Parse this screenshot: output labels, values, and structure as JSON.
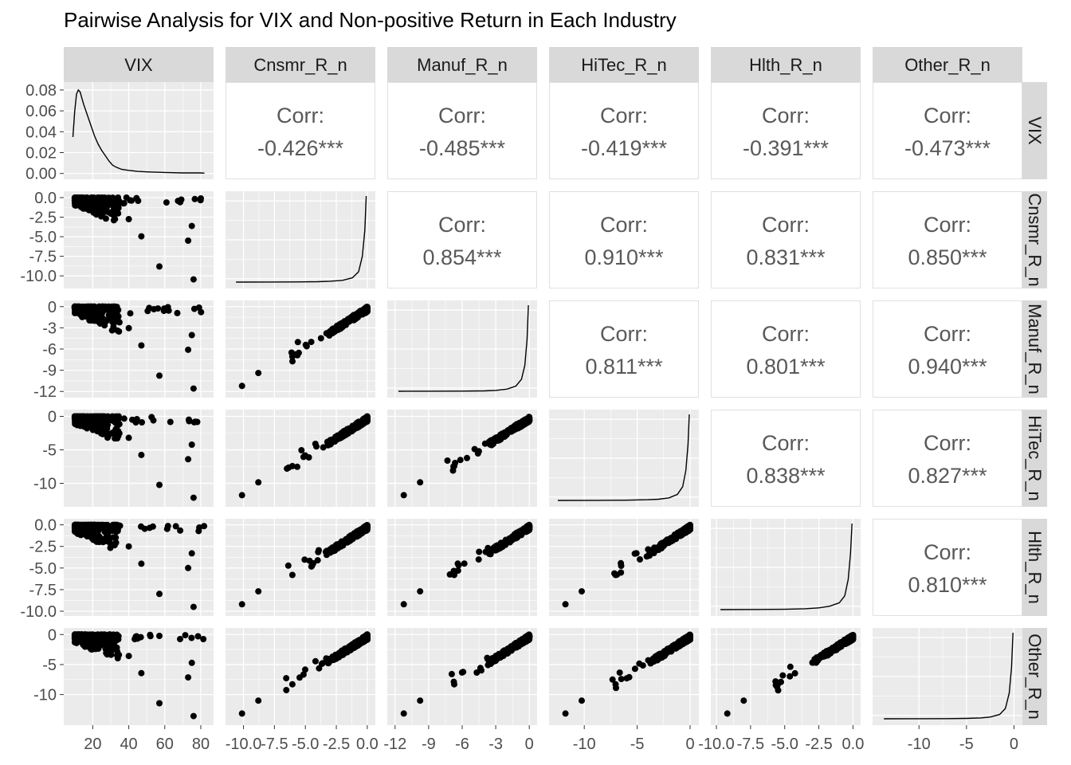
{
  "chart_data": {
    "type": "scatter",
    "title": "Pairwise Analysis for VIX and Non-positive Return in Each Industry",
    "variables": [
      "VIX",
      "Cnsmr_R_n",
      "Manuf_R_n",
      "HiTec_R_n",
      "Hlth_R_n",
      "Other_R_n"
    ],
    "corr_label": "Corr:",
    "correlations": [
      {
        "row": "VIX",
        "col": "Cnsmr_R_n",
        "value": "-0.426***"
      },
      {
        "row": "VIX",
        "col": "Manuf_R_n",
        "value": "-0.485***"
      },
      {
        "row": "VIX",
        "col": "HiTec_R_n",
        "value": "-0.419***"
      },
      {
        "row": "VIX",
        "col": "Hlth_R_n",
        "value": "-0.391***"
      },
      {
        "row": "VIX",
        "col": "Other_R_n",
        "value": "-0.473***"
      },
      {
        "row": "Cnsmr_R_n",
        "col": "Manuf_R_n",
        "value": "0.854***"
      },
      {
        "row": "Cnsmr_R_n",
        "col": "HiTec_R_n",
        "value": "0.910***"
      },
      {
        "row": "Cnsmr_R_n",
        "col": "Hlth_R_n",
        "value": "0.831***"
      },
      {
        "row": "Cnsmr_R_n",
        "col": "Other_R_n",
        "value": "0.850***"
      },
      {
        "row": "Manuf_R_n",
        "col": "HiTec_R_n",
        "value": "0.811***"
      },
      {
        "row": "Manuf_R_n",
        "col": "Hlth_R_n",
        "value": "0.801***"
      },
      {
        "row": "Manuf_R_n",
        "col": "Other_R_n",
        "value": "0.940***"
      },
      {
        "row": "HiTec_R_n",
        "col": "Hlth_R_n",
        "value": "0.838***"
      },
      {
        "row": "HiTec_R_n",
        "col": "Other_R_n",
        "value": "0.827***"
      },
      {
        "row": "Hlth_R_n",
        "col": "Other_R_n",
        "value": "0.810***"
      }
    ],
    "column_axes": [
      {
        "range": [
          7,
          84
        ],
        "ticks": [
          20,
          40,
          60,
          80
        ],
        "tick_labels": [
          "20",
          "40",
          "60",
          "80"
        ]
      },
      {
        "range": [
          -11.0,
          0.2
        ],
        "ticks": [
          -10,
          -7.5,
          -5,
          -2.5,
          0
        ],
        "tick_labels": [
          "-10.0",
          "-7.5",
          "-5.0",
          "-2.5",
          "0.0"
        ]
      },
      {
        "range": [
          -12.2,
          0.2
        ],
        "ticks": [
          -12,
          -9,
          -6,
          -3,
          0
        ],
        "tick_labels": [
          "-12",
          "-9",
          "-6",
          "-3",
          "0"
        ]
      },
      {
        "range": [
          -12.8,
          0.3
        ],
        "ticks": [
          -10,
          -5,
          0
        ],
        "tick_labels": [
          "-10",
          "-5",
          "0"
        ]
      },
      {
        "range": [
          -10.0,
          0.15
        ],
        "ticks": [
          -10,
          -7.5,
          -5,
          -2.5,
          0
        ],
        "tick_labels": [
          "-10.0",
          "-7.5",
          "-5.0",
          "-2.5",
          "0.0"
        ]
      },
      {
        "range": [
          -14.3,
          0.3
        ],
        "ticks": [
          -10,
          -5,
          0
        ],
        "tick_labels": [
          "-10",
          "-5",
          "0"
        ]
      }
    ],
    "row_axes": [
      {
        "range": [
          -0.001,
          0.083
        ],
        "ticks": [
          0.0,
          0.02,
          0.04,
          0.06,
          0.08
        ],
        "tick_labels": [
          "0.00",
          "0.02",
          "0.04",
          "0.06",
          "0.08"
        ]
      },
      {
        "range": [
          -11.0,
          0.2
        ],
        "ticks": [
          -10,
          -7.5,
          -5,
          -2.5,
          0
        ],
        "tick_labels": [
          "-10.0",
          "-7.5",
          "-5.0",
          "-2.5",
          "0.0"
        ]
      },
      {
        "range": [
          -12.2,
          0.2
        ],
        "ticks": [
          -12,
          -9,
          -6,
          -3,
          0
        ],
        "tick_labels": [
          "-12",
          "-9",
          "-6",
          "-3",
          "0"
        ]
      },
      {
        "range": [
          -12.8,
          0.3
        ],
        "ticks": [
          -10,
          -5,
          0
        ],
        "tick_labels": [
          "-10",
          "-5",
          "0"
        ]
      },
      {
        "range": [
          -10.0,
          0.15
        ],
        "ticks": [
          -10,
          -7.5,
          -5,
          -2.5,
          0
        ],
        "tick_labels": [
          "-10.0",
          "-7.5",
          "-5.0",
          "-2.5",
          "0.0"
        ]
      },
      {
        "range": [
          -14.3,
          0.3
        ],
        "ticks": [
          -10,
          -5,
          0
        ],
        "tick_labels": [
          "-10",
          "-5",
          "0"
        ]
      }
    ],
    "density_curves": {
      "VIX": [
        [
          9,
          0.035
        ],
        [
          10,
          0.06
        ],
        [
          11,
          0.076
        ],
        [
          12,
          0.08
        ],
        [
          13,
          0.078
        ],
        [
          14,
          0.072
        ],
        [
          15,
          0.066
        ],
        [
          17,
          0.056
        ],
        [
          19,
          0.046
        ],
        [
          21,
          0.036
        ],
        [
          23,
          0.028
        ],
        [
          25,
          0.022
        ],
        [
          27,
          0.017
        ],
        [
          29,
          0.012
        ],
        [
          31,
          0.008
        ],
        [
          33,
          0.006
        ],
        [
          36,
          0.004
        ],
        [
          40,
          0.003
        ],
        [
          45,
          0.002
        ],
        [
          50,
          0.0015
        ],
        [
          60,
          0.001
        ],
        [
          70,
          0.0005
        ],
        [
          80,
          0.0005
        ],
        [
          82,
          0.0003
        ]
      ],
      "Cnsmr_R_n": [
        [
          -10.6,
          0.0
        ],
        [
          -8,
          0.001
        ],
        [
          -6,
          0.002
        ],
        [
          -4,
          0.005
        ],
        [
          -3,
          0.01
        ],
        [
          -2,
          0.02
        ],
        [
          -1.2,
          0.05
        ],
        [
          -0.7,
          0.12
        ],
        [
          -0.4,
          0.3
        ],
        [
          -0.2,
          0.6
        ],
        [
          -0.08,
          1.0
        ]
      ],
      "Manuf_R_n": [
        [
          -11.7,
          0.0
        ],
        [
          -9,
          0.001
        ],
        [
          -6,
          0.002
        ],
        [
          -4,
          0.005
        ],
        [
          -3,
          0.01
        ],
        [
          -2,
          0.025
        ],
        [
          -1.2,
          0.06
        ],
        [
          -0.7,
          0.14
        ],
        [
          -0.4,
          0.3
        ],
        [
          -0.2,
          0.6
        ],
        [
          -0.08,
          1.0
        ]
      ],
      "HiTec_R_n": [
        [
          -12.5,
          0.0
        ],
        [
          -9,
          0.001
        ],
        [
          -6,
          0.003
        ],
        [
          -4,
          0.008
        ],
        [
          -3,
          0.014
        ],
        [
          -2,
          0.03
        ],
        [
          -1.2,
          0.07
        ],
        [
          -0.7,
          0.16
        ],
        [
          -0.4,
          0.35
        ],
        [
          -0.2,
          0.65
        ],
        [
          -0.08,
          1.0
        ]
      ],
      "Hlth_R_n": [
        [
          -9.7,
          0.0
        ],
        [
          -7,
          0.002
        ],
        [
          -5,
          0.004
        ],
        [
          -3.5,
          0.01
        ],
        [
          -2.5,
          0.02
        ],
        [
          -1.7,
          0.04
        ],
        [
          -1.0,
          0.08
        ],
        [
          -0.6,
          0.16
        ],
        [
          -0.35,
          0.35
        ],
        [
          -0.18,
          0.65
        ],
        [
          -0.07,
          1.0
        ]
      ],
      "Other_R_n": [
        [
          -13.7,
          0.0
        ],
        [
          -10,
          0.001
        ],
        [
          -7,
          0.002
        ],
        [
          -5,
          0.005
        ],
        [
          -3.5,
          0.01
        ],
        [
          -2.5,
          0.02
        ],
        [
          -1.5,
          0.05
        ],
        [
          -0.9,
          0.12
        ],
        [
          -0.5,
          0.3
        ],
        [
          -0.25,
          0.6
        ],
        [
          -0.1,
          1.0
        ]
      ]
    },
    "grid": true,
    "background_color": "#EBEBEB",
    "strip_color": "#D9D9D9",
    "point_color": "#000000"
  }
}
